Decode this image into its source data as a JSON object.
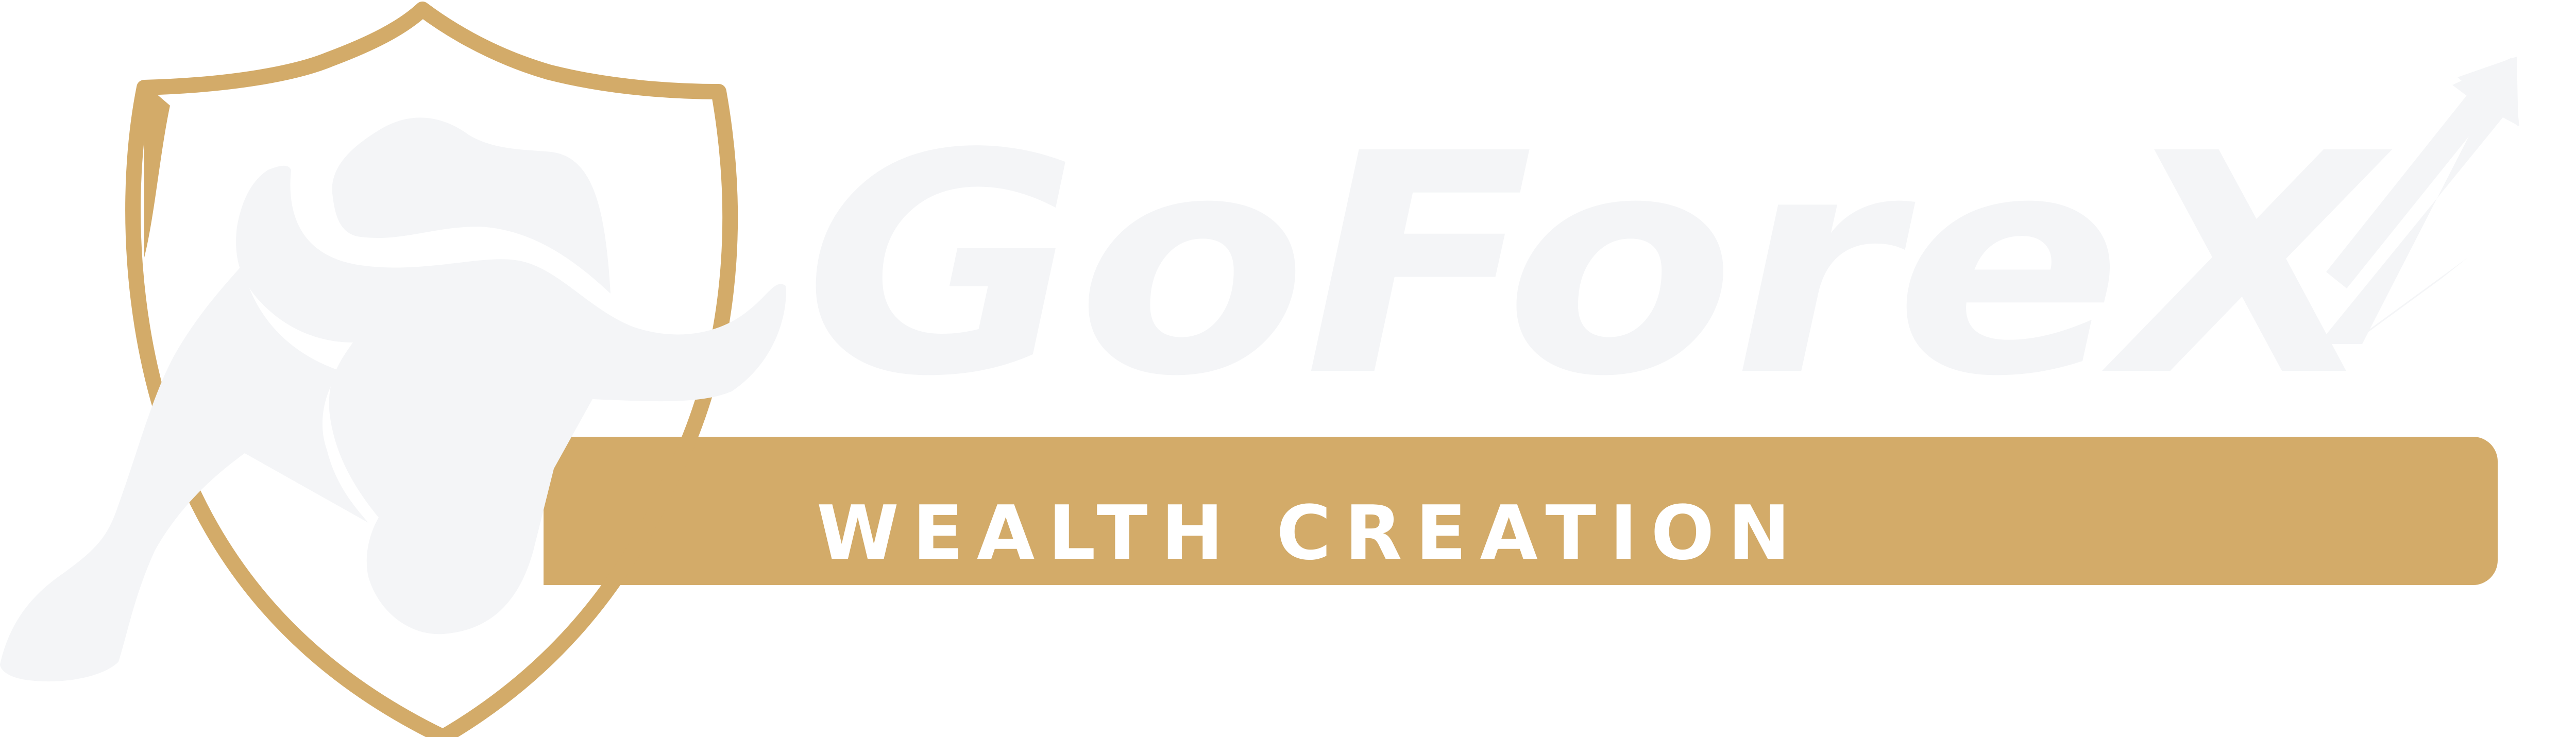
{
  "logo": {
    "brand_name": "GoForeX",
    "tagline": "WEALTH CREATION"
  },
  "colors": {
    "gold": "#D3AB69",
    "light": "#F4F5F7",
    "background": "#FFFFFF",
    "tagline_text": "#FFFFFF"
  },
  "icons": {
    "emblem": "shield-with-bull-icon",
    "trend": "upward-arrow-icon"
  }
}
